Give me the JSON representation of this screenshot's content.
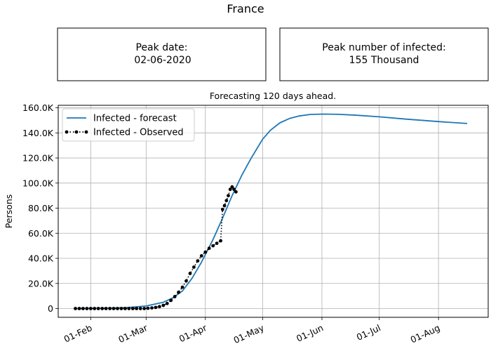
{
  "title": "France",
  "peak_date_box": {
    "label": "Peak date:",
    "value": "02-06-2020"
  },
  "peak_number_box": {
    "label": "Peak number of infected:",
    "value": "155 Thousand"
  },
  "chart_data": {
    "type": "line",
    "subtitle": "Forecasting 120 days ahead.",
    "ylabel": "Persons",
    "xlabel": "",
    "ylim": [
      -7000,
      162000
    ],
    "yticks": [
      {
        "value": 0,
        "label": "0"
      },
      {
        "value": 20000,
        "label": "20.0K"
      },
      {
        "value": 40000,
        "label": "40.0K"
      },
      {
        "value": 60000,
        "label": "60.0K"
      },
      {
        "value": 80000,
        "label": "80.0K"
      },
      {
        "value": 100000,
        "label": "100.0K"
      },
      {
        "value": 120000,
        "label": "120.0K"
      },
      {
        "value": 140000,
        "label": "140.0K"
      },
      {
        "value": 160000,
        "label": "160.0K"
      }
    ],
    "xlim": [
      "2020-01-15",
      "2020-08-27"
    ],
    "xticks": [
      {
        "value": "2020-02-01",
        "label": "01-Feb"
      },
      {
        "value": "2020-03-01",
        "label": "01-Mar"
      },
      {
        "value": "2020-04-01",
        "label": "01-Apr"
      },
      {
        "value": "2020-05-01",
        "label": "01-May"
      },
      {
        "value": "2020-06-01",
        "label": "01-Jun"
      },
      {
        "value": "2020-07-01",
        "label": "01-Jul"
      },
      {
        "value": "2020-08-01",
        "label": "01-Aug"
      }
    ],
    "grid": true,
    "legend": "top-left",
    "series": [
      {
        "name": "Infected - forecast",
        "style": "solid",
        "color": "#1f77b4",
        "x": [
          "2020-01-24",
          "2020-02-01",
          "2020-02-10",
          "2020-02-20",
          "2020-03-01",
          "2020-03-10",
          "2020-03-15",
          "2020-03-20",
          "2020-03-25",
          "2020-03-30",
          "2020-04-05",
          "2020-04-10",
          "2020-04-15",
          "2020-04-20",
          "2020-04-25",
          "2020-05-01",
          "2020-05-05",
          "2020-05-10",
          "2020-05-15",
          "2020-05-20",
          "2020-05-26",
          "2020-06-02",
          "2020-06-10",
          "2020-06-20",
          "2020-07-01",
          "2020-07-15",
          "2020-08-01",
          "2020-08-16"
        ],
        "y": [
          0,
          100,
          300,
          800,
          2000,
          5000,
          8500,
          14000,
          24000,
          37000,
          55000,
          72000,
          90000,
          106000,
          120000,
          135000,
          142000,
          148000,
          151500,
          153500,
          154700,
          155000,
          154800,
          154000,
          152800,
          151000,
          149000,
          147500
        ]
      },
      {
        "name": "Infected - Observed",
        "style": "dotted-markers",
        "color": "#000000",
        "x": [
          "2020-01-24",
          "2020-01-26",
          "2020-01-28",
          "2020-01-30",
          "2020-02-01",
          "2020-02-03",
          "2020-02-05",
          "2020-02-07",
          "2020-02-09",
          "2020-02-11",
          "2020-02-13",
          "2020-02-15",
          "2020-02-17",
          "2020-02-19",
          "2020-02-21",
          "2020-02-23",
          "2020-02-25",
          "2020-02-27",
          "2020-02-29",
          "2020-03-02",
          "2020-03-04",
          "2020-03-06",
          "2020-03-08",
          "2020-03-10",
          "2020-03-12",
          "2020-03-14",
          "2020-03-16",
          "2020-03-18",
          "2020-03-20",
          "2020-03-22",
          "2020-03-24",
          "2020-03-26",
          "2020-03-28",
          "2020-03-30",
          "2020-04-01",
          "2020-04-03",
          "2020-04-05",
          "2020-04-07",
          "2020-04-09",
          "2020-04-10",
          "2020-04-11",
          "2020-04-12",
          "2020-04-13",
          "2020-04-14",
          "2020-04-15",
          "2020-04-16",
          "2020-04-17"
        ],
        "y": [
          0,
          0,
          0,
          0,
          0,
          0,
          0,
          0,
          0,
          0,
          0,
          0,
          0,
          0,
          0,
          0,
          0,
          0,
          0,
          200,
          500,
          900,
          1500,
          2500,
          4000,
          6500,
          9500,
          13000,
          17000,
          22000,
          28000,
          33000,
          38000,
          42000,
          45000,
          48000,
          50000,
          52000,
          54000,
          79000,
          82000,
          86000,
          90000,
          95000,
          97000,
          95000,
          93000
        ]
      }
    ]
  }
}
